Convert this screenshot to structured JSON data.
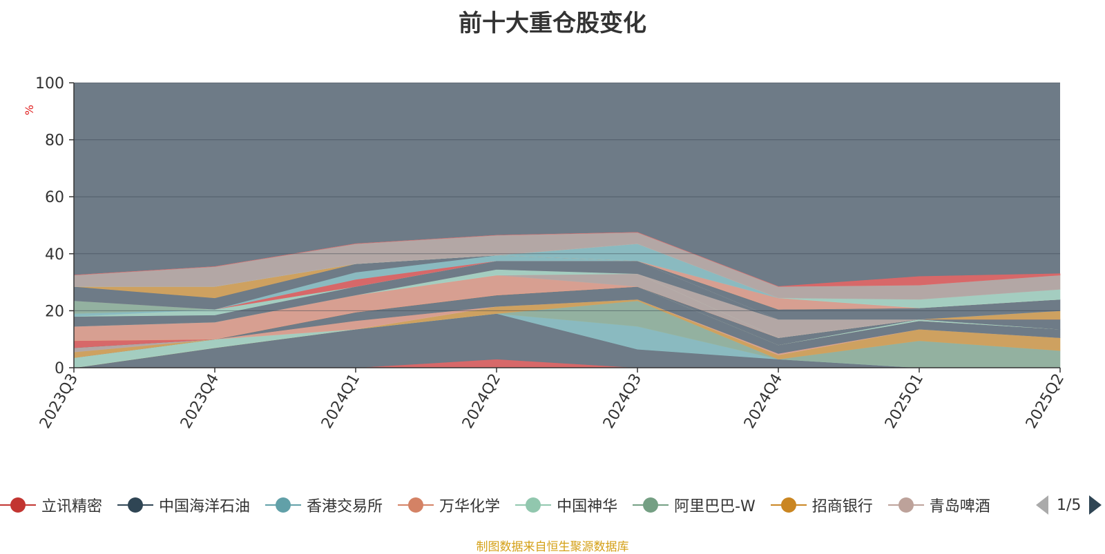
{
  "title": "前十大重仓股变化",
  "source_note": "制图数据来自恒生聚源数据库",
  "legend": {
    "items": [
      {
        "label": "立讯精密",
        "color": "#c23531"
      },
      {
        "label": "中国海洋石油",
        "color": "#2f4554"
      },
      {
        "label": "香港交易所",
        "color": "#61a0a8"
      },
      {
        "label": "万华化学",
        "color": "#d48265"
      },
      {
        "label": "中国神华",
        "color": "#91c7ae"
      },
      {
        "label": "阿里巴巴-W",
        "color": "#749f83"
      },
      {
        "label": "招商银行",
        "color": "#ca8622"
      },
      {
        "label": "青岛啤酒",
        "color": "#bda29a"
      }
    ],
    "page_indicator": "1/5"
  },
  "chart_data": {
    "type": "area",
    "stacked": true,
    "title": "前十大重仓股变化",
    "ylabel": "%",
    "ylim": [
      0,
      100
    ],
    "yticks": [
      0,
      20,
      40,
      60,
      80,
      100
    ],
    "categories": [
      "2023Q3",
      "2023Q4",
      "2024Q1",
      "2024Q2",
      "2024Q3",
      "2024Q4",
      "2025Q1",
      "2025Q2"
    ],
    "background_color": "#6e7b87",
    "grid": true,
    "series": [
      {
        "name": "立讯精密",
        "color": "#e06666",
        "values": [
          0,
          0,
          0,
          3,
          0,
          0,
          0,
          0
        ]
      },
      {
        "name": "中国海洋石油",
        "color": "#6e7b87",
        "values": [
          0,
          7,
          13.5,
          16,
          6.5,
          3,
          0,
          0
        ]
      },
      {
        "name": "香港交易所",
        "color": "#8cbfc4",
        "values": [
          0,
          0,
          0,
          0,
          8,
          0,
          0,
          0
        ]
      },
      {
        "name": "阿里巴巴-W",
        "color": "#96b5a2",
        "values": [
          0,
          0,
          0,
          0,
          9,
          0,
          9.5,
          6
        ]
      },
      {
        "name": "招商银行",
        "color": "#d6a45c",
        "values": [
          0,
          0,
          0,
          2.5,
          0.5,
          1.5,
          4,
          4.5
        ]
      },
      {
        "name": "中国神华",
        "color": "#a8d4c4",
        "values": [
          3.5,
          3,
          0,
          0,
          0,
          0,
          0,
          0
        ]
      },
      {
        "name": "万华化学",
        "color": "#e0a291",
        "values": [
          0,
          0,
          3,
          0,
          0,
          0.5,
          0,
          0
        ]
      },
      {
        "name": "中国海洋石油",
        "color": "#6e7b87",
        "values": [
          0,
          0,
          3,
          4,
          4.5,
          3,
          3,
          3
        ]
      },
      {
        "name": "招商银行",
        "color": "#d6a45c",
        "values": [
          2,
          0,
          0,
          0,
          0,
          0,
          0,
          0
        ]
      },
      {
        "name": "青岛啤酒",
        "color": "#b8aaa7",
        "values": [
          1.5,
          0,
          0,
          0,
          0,
          0,
          0,
          0
        ]
      },
      {
        "name": "中国神华",
        "color": "#a8d4c4",
        "values": [
          0,
          0,
          0,
          0,
          0,
          0,
          0.5,
          0
        ]
      },
      {
        "name": "中国海洋石油",
        "color": "#6e7b87",
        "values": [
          0,
          0,
          0,
          0,
          0,
          2.5,
          0,
          0
        ]
      },
      {
        "name": "中国海洋石油",
        "color": "#6e7b87",
        "values": [
          0,
          0,
          0,
          0,
          0,
          0,
          0,
          3.5
        ]
      },
      {
        "name": "立讯精密",
        "color": "#e06666",
        "values": [
          2.5,
          0,
          0,
          0,
          0,
          0,
          0,
          0
        ]
      },
      {
        "name": "招商银行",
        "color": "#d6a45c",
        "values": [
          0,
          0,
          0,
          0,
          0,
          0,
          0,
          3
        ]
      },
      {
        "name": "万华化学",
        "color": "#e0a291",
        "values": [
          5,
          6,
          6,
          7,
          0,
          0,
          0,
          0
        ]
      },
      {
        "name": "青岛啤酒",
        "color": "#b8aaa7",
        "values": [
          0,
          0,
          0,
          0,
          4.5,
          0,
          0,
          0
        ]
      },
      {
        "name": "中国神华",
        "color": "#a8d4c4",
        "values": [
          0,
          0,
          0,
          2,
          0,
          0,
          0,
          0
        ]
      },
      {
        "name": "青岛啤酒",
        "color": "#b8aaa7",
        "values": [
          0,
          0,
          0,
          0,
          0,
          6.5,
          0,
          0
        ]
      },
      {
        "name": "中国海洋石油",
        "color": "#6e7b87",
        "values": [
          3.5,
          2.5,
          3,
          3,
          4.5,
          0,
          0,
          0
        ]
      },
      {
        "name": "中国神华",
        "color": "#a8d4c4",
        "values": [
          0,
          2,
          0,
          0,
          0,
          0,
          0,
          0
        ]
      },
      {
        "name": "香港交易所",
        "color": "#8cbfc4",
        "values": [
          1,
          0,
          0,
          0,
          0,
          0,
          0,
          0
        ]
      },
      {
        "name": "阿里巴巴-W",
        "color": "#96b5a2",
        "values": [
          4.5,
          0,
          0,
          0,
          0,
          0,
          0,
          0
        ]
      },
      {
        "name": "立讯精密",
        "color": "#e06666",
        "values": [
          0,
          0,
          2.5,
          0,
          0,
          0,
          0,
          0
        ]
      },
      {
        "name": "香港交易所",
        "color": "#8cbfc4",
        "values": [
          0,
          0,
          2.5,
          2,
          0,
          0,
          0,
          0
        ]
      },
      {
        "name": "中国海洋石油",
        "color": "#6e7b87",
        "values": [
          5,
          4,
          3,
          0,
          0,
          3.5,
          4,
          4
        ]
      },
      {
        "name": "招商银行",
        "color": "#d6a45c",
        "values": [
          0,
          4,
          0,
          0,
          0,
          0,
          0,
          0
        ]
      },
      {
        "name": "万华化学",
        "color": "#e0a291",
        "values": [
          0,
          0,
          0,
          0,
          0,
          4,
          0,
          0
        ]
      },
      {
        "name": "香港交易所",
        "color": "#8cbfc4",
        "values": [
          0,
          0,
          0,
          0,
          6,
          0,
          0,
          0
        ]
      },
      {
        "name": "中国神华",
        "color": "#a8d4c4",
        "values": [
          0,
          0,
          0,
          0,
          0,
          0,
          3,
          3.5
        ]
      },
      {
        "name": "青岛啤酒",
        "color": "#b8aaa7",
        "values": [
          4,
          7,
          7,
          7,
          4,
          4,
          5,
          5
        ]
      },
      {
        "name": "立讯精密",
        "color": "#e06666",
        "values": [
          0,
          0,
          0,
          0,
          0,
          0,
          3,
          0.5
        ]
      }
    ]
  }
}
